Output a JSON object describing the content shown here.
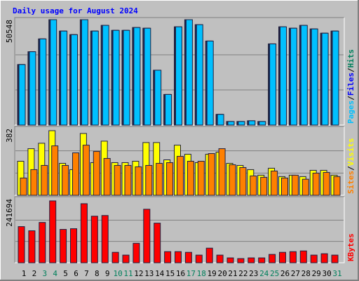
{
  "chart_data": {
    "type": "bar",
    "title": "Daily usage for August 2024",
    "categories": [
      "1",
      "2",
      "3",
      "4",
      "5",
      "6",
      "7",
      "8",
      "9",
      "10",
      "11",
      "12",
      "13",
      "14",
      "15",
      "16",
      "17",
      "18",
      "19",
      "20",
      "21",
      "22",
      "23",
      "24",
      "25",
      "26",
      "27",
      "28",
      "29",
      "30",
      "31"
    ],
    "highlight": {
      "categories": [
        2,
        3,
        9,
        10,
        16,
        17,
        23,
        24,
        30
      ],
      "color": "#00805c"
    },
    "legend_separator": "/",
    "panels": [
      {
        "ylim": [
          0,
          50548
        ],
        "yticks": [
          50548
        ],
        "grid_divisions": 3,
        "series": [
          {
            "name": "Pages",
            "color": "#00c0ff",
            "values": [
              29030,
              35178,
              41326,
              50548,
              45083,
              43375,
              50548,
              45083,
              47816,
              45425,
              45425,
              46791,
              46450,
              26298,
              14686,
              47133,
              50548,
              48157,
              40301,
              5123,
              1708,
              1708,
              2049,
              1708,
              38936,
              47133,
              46450,
              47816,
              46108,
              44059,
              45083
            ]
          },
          {
            "name": "Files",
            "color": "#0000ff",
            "values": [
              29030,
              35178,
              41326,
              50548,
              45083,
              43375,
              50548,
              45083,
              47816,
              45425,
              45425,
              46791,
              46450,
              26298,
              14686,
              47133,
              50548,
              48157,
              40301,
              5123,
              1708,
              1708,
              2049,
              1708,
              38936,
              47133,
              46450,
              47816,
              46108,
              44059,
              45083
            ]
          },
          {
            "name": "Hits",
            "color": "#00805c",
            "values": [
              29030,
              35178,
              41326,
              50548,
              45083,
              43375,
              50548,
              45083,
              47816,
              45425,
              45425,
              46791,
              46450,
              26298,
              14686,
              47133,
              50548,
              48157,
              40301,
              5123,
              1708,
              1708,
              2049,
              1708,
              38936,
              47133,
              46450,
              47816,
              46108,
              44059,
              45083
            ]
          }
        ]
      },
      {
        "ylim": [
          0,
          382
        ],
        "yticks": [
          382
        ],
        "grid_divisions": 3,
        "series": [
          {
            "name": "Sites",
            "color": "#ff8000",
            "values": [
              99,
              147,
              171,
              283,
              171,
              243,
              287,
              251,
              211,
              171,
              171,
              163,
              171,
              183,
              187,
              223,
              195,
              195,
              239,
              267,
              175,
              159,
              111,
              103,
              139,
              99,
              115,
              92,
              127,
              131,
              107
            ]
          },
          {
            "name": "Visits",
            "color": "#ffff00",
            "values": [
              195,
              267,
              298,
              370,
              183,
              147,
              354,
              187,
              310,
              187,
              187,
              195,
              302,
              302,
              203,
              287,
              235,
              187,
              235,
              247,
              183,
              171,
              147,
              115,
              155,
              107,
              115,
              107,
              143,
              143,
              115
            ]
          }
        ]
      },
      {
        "ylim": [
          0,
          241694
        ],
        "yticks": [
          241694
        ],
        "grid_divisions": 3,
        "series": [
          {
            "name": "KBytes",
            "color": "#ff0000",
            "values": [
              136610,
              120847,
              152373,
              233812,
              126101,
              128729,
              223304,
              176018,
              178645,
              39407,
              28898,
              73558,
              202287,
              149746,
              42033,
              42033,
              39407,
              28898,
              55169,
              28898,
              18390,
              15763,
              18390,
              18390,
              31524,
              39407,
              42033,
              44660,
              28898,
              34151,
              28898
            ]
          }
        ]
      }
    ]
  }
}
